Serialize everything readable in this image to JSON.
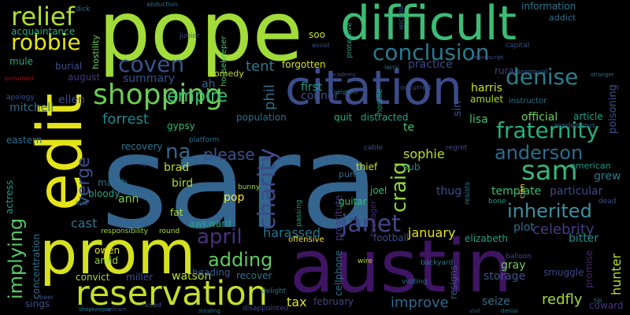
{
  "background": "#000000",
  "words": [
    {
      "text": "sara",
      "color": "#33658f"
    },
    {
      "text": "pope",
      "color": "#a2dc3a"
    },
    {
      "text": "austin",
      "color": "#3f1563"
    },
    {
      "text": "citation",
      "color": "#3b4c8b"
    },
    {
      "text": "prom",
      "color": "#d5e11f"
    },
    {
      "text": "difficult",
      "color": "#3cbc75"
    },
    {
      "text": "edit",
      "color": "#e6e419"
    },
    {
      "text": "reservation",
      "color": "#c5df2b"
    },
    {
      "text": "shopping",
      "color": "#6ccc56"
    },
    {
      "text": "conclusion",
      "color": "#2a798e"
    },
    {
      "text": "fraternity",
      "color": "#26ae80"
    },
    {
      "text": "inherited",
      "color": "#3b8fa0"
    },
    {
      "text": "relief",
      "color": "#b0dd2f"
    },
    {
      "text": "robbie",
      "color": "#e3e41a"
    },
    {
      "text": "coven",
      "color": "#33558c"
    },
    {
      "text": "denise",
      "color": "#2a7e8e"
    },
    {
      "text": "anderson",
      "color": "#2d6e8e"
    },
    {
      "text": "sam",
      "color": "#35b779"
    },
    {
      "text": "charity",
      "color": "#3e4a89"
    },
    {
      "text": "janet",
      "color": "#404788"
    },
    {
      "text": "craig",
      "color": "#8fd744"
    },
    {
      "text": "verge",
      "color": "#3c508b"
    },
    {
      "text": "implying",
      "color": "#58c765"
    },
    {
      "text": "april",
      "color": "#46327e"
    },
    {
      "text": "adding",
      "color": "#5ec962"
    },
    {
      "text": "empire",
      "color": "#3fbc73"
    },
    {
      "text": "na",
      "color": "#31678e"
    },
    {
      "text": "please",
      "color": "#3b528b"
    },
    {
      "text": "tent",
      "color": "#2a788e"
    },
    {
      "text": "phil",
      "color": "#2e6f8e"
    },
    {
      "text": "summary",
      "color": "#3a538b"
    },
    {
      "text": "forrest",
      "color": "#24868e"
    },
    {
      "text": "harassed",
      "color": "#2b758e"
    },
    {
      "text": "january",
      "color": "#e5e419"
    },
    {
      "text": "celebrity",
      "color": "#433e85"
    },
    {
      "text": "sophie",
      "color": "#bddf26"
    },
    {
      "text": "cast",
      "color": "#2a768e"
    },
    {
      "text": "hunter",
      "color": "#bade28"
    },
    {
      "text": "watson",
      "color": "#bddf26"
    },
    {
      "text": "seize",
      "color": "#2c728e"
    },
    {
      "text": "redfly",
      "color": "#a2da37"
    },
    {
      "text": "tax",
      "color": "#dde318"
    },
    {
      "text": "improve",
      "color": "#31688e"
    },
    {
      "text": "february",
      "color": "#404588"
    },
    {
      "text": "template",
      "color": "#3dbc74"
    },
    {
      "text": "grew",
      "color": "#297a8e"
    },
    {
      "text": "gray",
      "color": "#6ece58"
    },
    {
      "text": "plot",
      "color": "#2d718e"
    },
    {
      "text": "storage",
      "color": "#3a548c"
    },
    {
      "text": "bitter",
      "color": "#21918c"
    },
    {
      "text": "elizabeth",
      "color": "#1fa188"
    },
    {
      "text": "particular",
      "color": "#3f4889"
    },
    {
      "text": "american",
      "color": "#1e9c89"
    },
    {
      "text": "official",
      "color": "#6ccd5a"
    },
    {
      "text": "article",
      "color": "#1fa187"
    },
    {
      "text": "information",
      "color": "#2a788e"
    },
    {
      "text": "addict",
      "color": "#2d708e"
    },
    {
      "text": "harris",
      "color": "#cae11f"
    },
    {
      "text": "amulet",
      "color": "#addc30"
    },
    {
      "text": "connor",
      "color": "#3e4c8a"
    },
    {
      "text": "first",
      "color": "#1f9f88"
    },
    {
      "text": "practice",
      "color": "#3e4989"
    },
    {
      "text": "lisa",
      "color": "#46c06f"
    },
    {
      "text": "sin",
      "color": "#3d4e8a"
    },
    {
      "text": "poisoning",
      "color": "#3b528b"
    },
    {
      "text": "population",
      "color": "#2e6e8e"
    },
    {
      "text": "quit",
      "color": "#2ab07f"
    },
    {
      "text": "distracted",
      "color": "#22a785"
    },
    {
      "text": "te",
      "color": "#4ec36b"
    },
    {
      "text": "forgotten",
      "color": "#d8e219"
    },
    {
      "text": "soo",
      "color": "#c8e020"
    },
    {
      "text": "ah",
      "color": "#33638d"
    },
    {
      "text": "comedy",
      "color": "#c2df23"
    },
    {
      "text": "mitchell",
      "color": "#2e6e8e"
    },
    {
      "text": "ellen",
      "color": "#3e4989"
    },
    {
      "text": "august",
      "color": "#453581"
    },
    {
      "text": "burial",
      "color": "#3c4f8a"
    },
    {
      "text": "mule",
      "color": "#25ab82"
    },
    {
      "text": "acquaintance",
      "color": "#27ad81"
    },
    {
      "text": "eastern",
      "color": "#2d708e"
    },
    {
      "text": "actress",
      "color": "#1e9b8a"
    },
    {
      "text": "concentration",
      "color": "#2d718e"
    },
    {
      "text": "sings",
      "color": "#3c4f8a"
    },
    {
      "text": "convict",
      "color": "#a0da39"
    },
    {
      "text": "miller",
      "color": "#3b528b"
    },
    {
      "text": "amid",
      "color": "#99d83d"
    },
    {
      "text": "owen",
      "color": "#e7e419"
    },
    {
      "text": "fat",
      "color": "#b2dd2d"
    },
    {
      "text": "awkward",
      "color": "#22a884"
    },
    {
      "text": "bloody",
      "color": "#20a386"
    },
    {
      "text": "march",
      "color": "#2c738e"
    },
    {
      "text": "ann",
      "color": "#7ad151"
    },
    {
      "text": "bird",
      "color": "#aadc32"
    },
    {
      "text": "brad",
      "color": "#c0df25"
    },
    {
      "text": "recovery",
      "color": "#2a778e"
    },
    {
      "text": "gypsy",
      "color": "#37b878"
    },
    {
      "text": "pop",
      "color": "#fde725"
    },
    {
      "text": "joel",
      "color": "#35b779"
    },
    {
      "text": "thief",
      "color": "#d2e21b"
    },
    {
      "text": "sub",
      "color": "#25848e"
    },
    {
      "text": "thug",
      "color": "#3c4f8a"
    },
    {
      "text": "prostitute",
      "color": "#443983"
    },
    {
      "text": "football",
      "color": "#3d4d8a"
    },
    {
      "text": "cellphone",
      "color": "#2d718e"
    },
    {
      "text": "recover",
      "color": "#2a788e"
    },
    {
      "text": "heading",
      "color": "#365c8d"
    },
    {
      "text": "resigns",
      "color": "#39568c"
    },
    {
      "text": "smuggle",
      "color": "#404688"
    },
    {
      "text": "promise",
      "color": "#482475"
    },
    {
      "text": "coward",
      "color": "#463480"
    },
    {
      "text": "guitar",
      "color": "#3dbc74"
    },
    {
      "text": "punish",
      "color": "#2f6c8e"
    },
    {
      "text": "offensive",
      "color": "#fde725"
    },
    {
      "text": "disappointed",
      "color": "#3f4889"
    },
    {
      "text": "hostility",
      "color": "#70cf57"
    },
    {
      "text": "housekeeper",
      "color": "#46c06f"
    },
    {
      "text": "protective",
      "color": "#22a884"
    },
    {
      "text": "hostile",
      "color": "#1fa088"
    },
    {
      "text": "instructor",
      "color": "#2c718e"
    },
    {
      "text": "rural",
      "color": "#423f85"
    },
    {
      "text": "approval",
      "color": "#365d8d"
    },
    {
      "text": "capital",
      "color": "#3c4f8a"
    },
    {
      "text": "junior",
      "color": "#3b528b"
    },
    {
      "text": "platform",
      "color": "#2e6e8e"
    },
    {
      "text": "sport",
      "color": "#3a538b"
    },
    {
      "text": "bunny",
      "color": "#a2da37"
    },
    {
      "text": "responsibility",
      "color": "#a0da39"
    },
    {
      "text": "round",
      "color": "#b5de2b"
    },
    {
      "text": "delight",
      "color": "#2c738e"
    },
    {
      "text": "raised",
      "color": "#3a548c"
    },
    {
      "text": "teenager",
      "color": "#482677"
    },
    {
      "text": "passing",
      "color": "#1f9e89"
    },
    {
      "text": "cable",
      "color": "#3b528b"
    },
    {
      "text": "rendezvous",
      "color": "#365c8d"
    },
    {
      "text": "resists",
      "color": "#2a778e"
    },
    {
      "text": "clan",
      "color": "#fde725"
    },
    {
      "text": "visiting",
      "color": "#2e6e8e"
    },
    {
      "text": "balloon",
      "color": "#3e4a89"
    },
    {
      "text": "backyard",
      "color": "#2a788e"
    },
    {
      "text": "wire",
      "color": "#b5de2b"
    },
    {
      "text": "occurred",
      "color": "#3e4a89"
    },
    {
      "text": "wicked",
      "color": "#3a548c"
    },
    {
      "text": "dick",
      "color": "#2c718e"
    },
    {
      "text": "sue",
      "color": "#2e6e8e"
    },
    {
      "text": "apology",
      "color": "#3b528b"
    },
    {
      "text": "poisoned",
      "color": "#a50f15"
    },
    {
      "text": "dead",
      "color": "#3b528b"
    },
    {
      "text": "bone",
      "color": "#1f9e89"
    },
    {
      "text": "regret",
      "color": "#3e4a89"
    },
    {
      "text": "abduction",
      "color": "#2c718e"
    },
    {
      "text": "assist",
      "color": "#3b528b"
    },
    {
      "text": "larry",
      "color": "#2c718e"
    },
    {
      "text": "academy",
      "color": "#3e4a89"
    },
    {
      "text": "neighbor",
      "color": "#2a788e"
    },
    {
      "text": "manuscript",
      "color": "#3b528b"
    },
    {
      "text": "tip",
      "color": "#2c718e"
    },
    {
      "text": "beer",
      "color": "#3b528b"
    },
    {
      "text": "shopkeeper",
      "color": "#2a788e"
    },
    {
      "text": "william",
      "color": "#3e4a89"
    },
    {
      "text": "stealing",
      "color": "#2c718e"
    },
    {
      "text": "visit",
      "color": "#3b528b"
    },
    {
      "text": "denial",
      "color": "#2a788e"
    },
    {
      "text": "stranger",
      "color": "#2c718e"
    }
  ]
}
